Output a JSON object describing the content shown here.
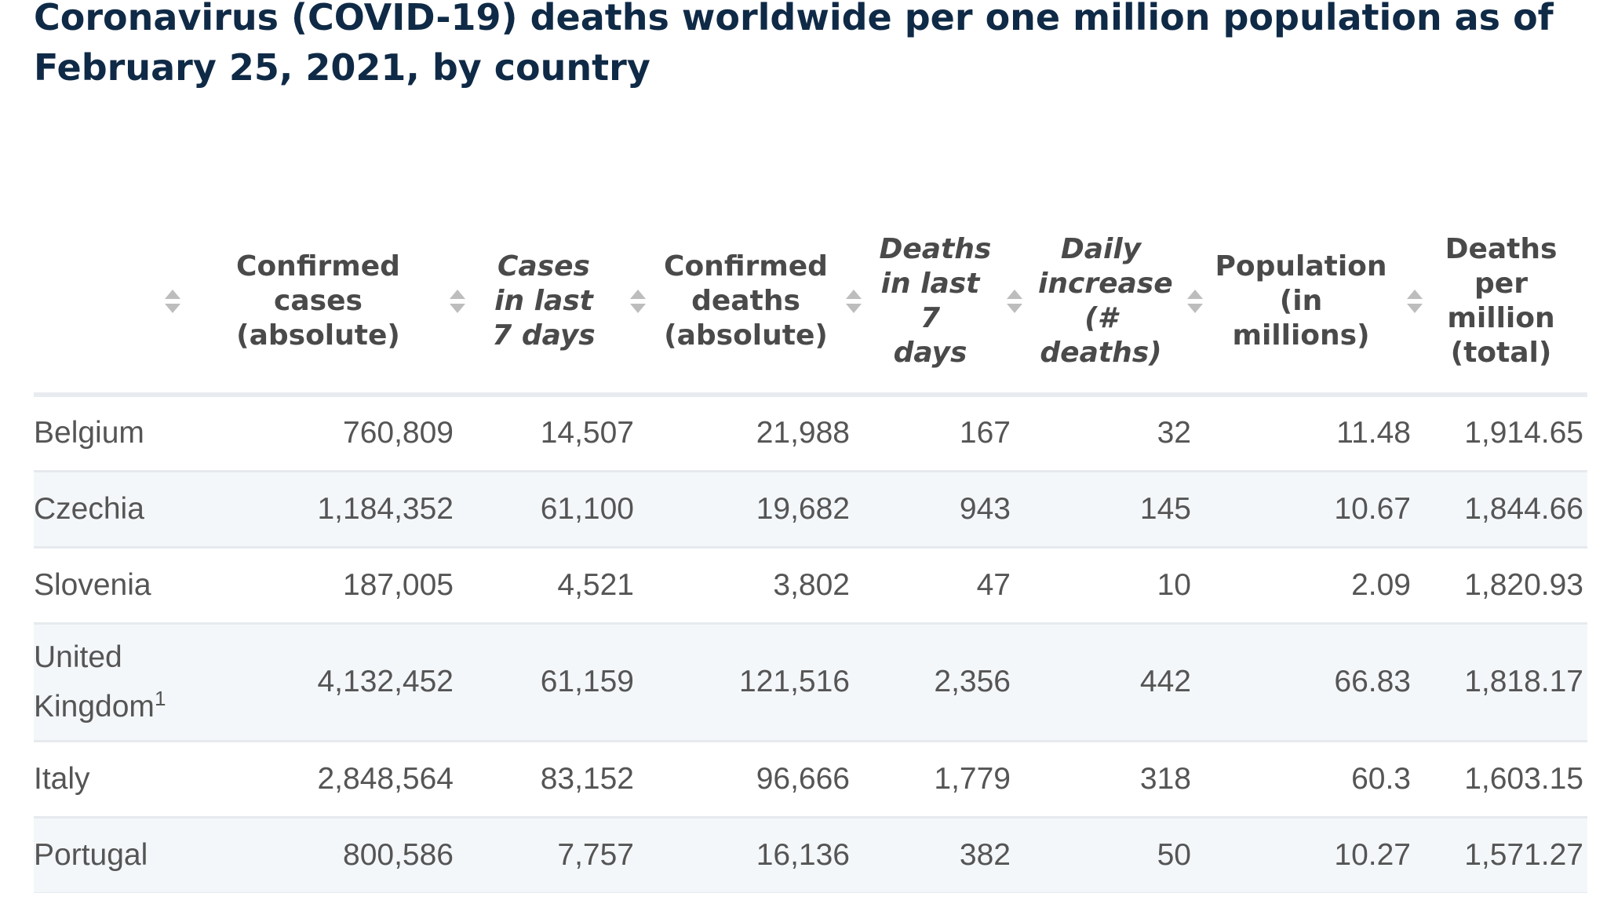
{
  "title": "Coronavirus (COVID-19) deaths worldwide per one million population as of February 25, 2021, by country",
  "chart_data": {
    "type": "table",
    "columns": [
      {
        "key": "country",
        "label": ""
      },
      {
        "key": "confirmed_cases",
        "label": "Confirmed cases (absolute)"
      },
      {
        "key": "cases_last_7",
        "label": "Cases in last 7 days"
      },
      {
        "key": "confirmed_deaths",
        "label": "Confirmed deaths (absolute)"
      },
      {
        "key": "deaths_last_7",
        "label": "Deaths in last 7 days"
      },
      {
        "key": "daily_increase",
        "label": "Daily increase (# deaths)"
      },
      {
        "key": "population",
        "label": "Population (in millions)"
      },
      {
        "key": "deaths_per_million",
        "label": "Deaths per million (total)"
      }
    ],
    "rows": [
      {
        "country": "Belgium",
        "confirmed_cases": "760,809",
        "cases_last_7": "14,507",
        "confirmed_deaths": "21,988",
        "deaths_last_7": "167",
        "daily_increase": "32",
        "population": "11.48",
        "deaths_per_million": "1,914.65"
      },
      {
        "country": "Czechia",
        "confirmed_cases": "1,184,352",
        "cases_last_7": "61,100",
        "confirmed_deaths": "19,682",
        "deaths_last_7": "943",
        "daily_increase": "145",
        "population": "10.67",
        "deaths_per_million": "1,844.66"
      },
      {
        "country": "Slovenia",
        "confirmed_cases": "187,005",
        "cases_last_7": "4,521",
        "confirmed_deaths": "3,802",
        "deaths_last_7": "47",
        "daily_increase": "10",
        "population": "2.09",
        "deaths_per_million": "1,820.93"
      },
      {
        "country": "United Kingdom",
        "country_note": "1",
        "confirmed_cases": "4,132,452",
        "cases_last_7": "61,159",
        "confirmed_deaths": "121,516",
        "deaths_last_7": "2,356",
        "daily_increase": "442",
        "population": "66.83",
        "deaths_per_million": "1,818.17"
      },
      {
        "country": "Italy",
        "confirmed_cases": "2,848,564",
        "cases_last_7": "83,152",
        "confirmed_deaths": "96,666",
        "deaths_last_7": "1,779",
        "daily_increase": "318",
        "population": "60.3",
        "deaths_per_million": "1,603.15"
      },
      {
        "country": "Portugal",
        "confirmed_cases": "800,586",
        "cases_last_7": "7,757",
        "confirmed_deaths": "16,136",
        "deaths_last_7": "382",
        "daily_increase": "50",
        "population": "10.27",
        "deaths_per_million": "1,571.27"
      }
    ]
  },
  "colors": {
    "title": "#0f2a46",
    "header_text": "#4a4a4a",
    "cell_text": "#555555",
    "row_alt_bg": "#f4f7fa",
    "divider": "#e6eaee",
    "sort_icon": "#bdbdbd"
  },
  "icons": {
    "sort": "sort-arrows-icon"
  }
}
